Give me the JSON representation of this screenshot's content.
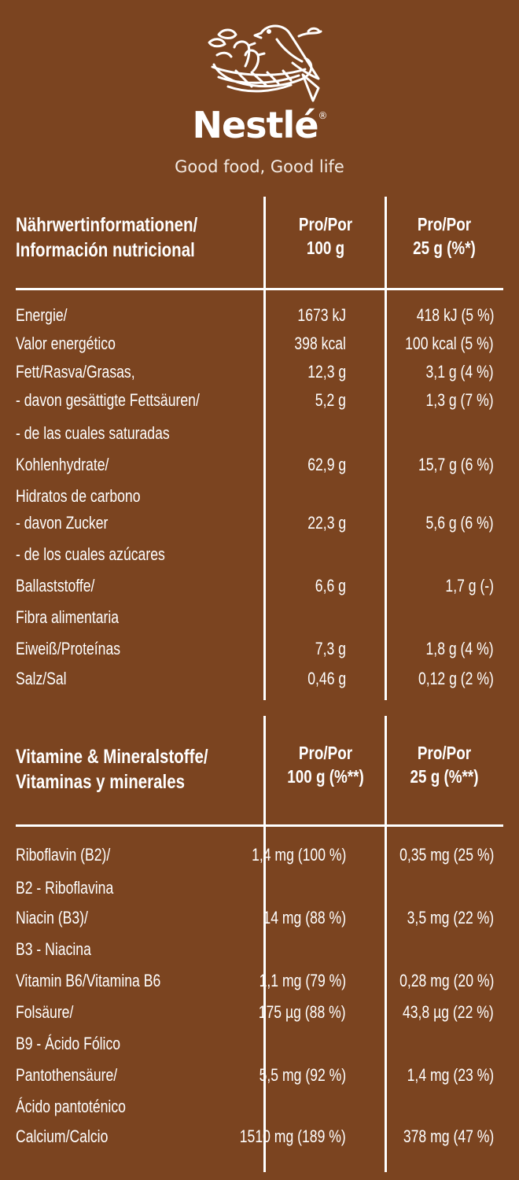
{
  "brand": {
    "name": "Nestlé",
    "tagline": "Good food, Good life",
    "logo_icon": "bird-nest-logo-icon"
  },
  "nutrition": {
    "title_line1": "Nährwertinformationen/",
    "title_line2": "Información nutricional",
    "col1_line1": "Pro/Por",
    "col1_line2": "100 g",
    "col2_line1": "Pro/Por",
    "col2_line2": "25 g (%*)",
    "rows": [
      {
        "label": "Energie/",
        "v100": "1673 kJ",
        "v25": "418 kJ (5 %)"
      },
      {
        "label": "Valor energético",
        "v100": "398 kcal",
        "v25": "100 kcal (5 %)"
      },
      {
        "label": "Fett/Rasva/Grasas,",
        "v100": "12,3 g",
        "v25": "3,1 g (4 %)"
      },
      {
        "label": "- davon gesättigte Fettsäuren/",
        "v100": "5,2 g",
        "v25": "1,3 g (7 %)"
      },
      {
        "label": "- de las cuales saturadas",
        "v100": "",
        "v25": ""
      },
      {
        "label": "Kohlenhydrate/",
        "v100": "62,9 g",
        "v25": "15,7 g (6 %)"
      },
      {
        "label": "Hidratos de carbono",
        "v100": "",
        "v25": ""
      },
      {
        "label": "- davon Zucker",
        "v100": "22,3 g",
        "v25": "5,6 g (6 %)"
      },
      {
        "label": "-  de los cuales azúcares",
        "v100": "",
        "v25": ""
      },
      {
        "label": "Ballaststoffe/",
        "v100": "6,6 g",
        "v25": "1,7 g (-)"
      },
      {
        "label": "Fibra alimentaria",
        "v100": "",
        "v25": ""
      },
      {
        "label": "Eiweiß/Proteínas",
        "v100": "7,3 g",
        "v25": "1,8 g (4 %)"
      },
      {
        "label": "Salz/Sal",
        "v100": "0,46 g",
        "v25": "0,12 g (2 %)"
      }
    ]
  },
  "vitamins": {
    "title_line1": "Vitamine & Mineralstoffe/",
    "title_line2": "Vitaminas y minerales",
    "col1_line1": "Pro/Por",
    "col1_line2": "100 g (%**)",
    "col2_line1": "Pro/Por",
    "col2_line2": "25 g (%**)",
    "rows": [
      {
        "label": "Riboflavin (B2)/",
        "v100": "1,4 mg (100 %)",
        "v25": "0,35 mg (25 %)"
      },
      {
        "label": "B2 - Riboflavina",
        "v100": "",
        "v25": ""
      },
      {
        "label": "Niacin (B3)/",
        "v100": "14 mg (88 %)",
        "v25": "3,5 mg (22 %)"
      },
      {
        "label": "B3 - Niacina",
        "v100": "",
        "v25": ""
      },
      {
        "label": "Vitamin B6/Vitamina B6",
        "v100": "1,1 mg (79 %)",
        "v25": "0,28 mg (20 %)"
      },
      {
        "label": "Folsäure/",
        "v100": "175 µg (88 %)",
        "v25": "43,8 µg (22 %)"
      },
      {
        "label": "B9 - Ácido Fólico",
        "v100": "",
        "v25": ""
      },
      {
        "label": "Pantothensäure/",
        "v100": "5,5 mg (92 %)",
        "v25": "1,4 mg (23 %)"
      },
      {
        "label": "Ácido pantoténico",
        "v100": "",
        "v25": ""
      },
      {
        "label": "Calcium/Calcio",
        "v100": "1510 mg (189 %)",
        "v25": "378 mg (47 %)"
      }
    ]
  }
}
